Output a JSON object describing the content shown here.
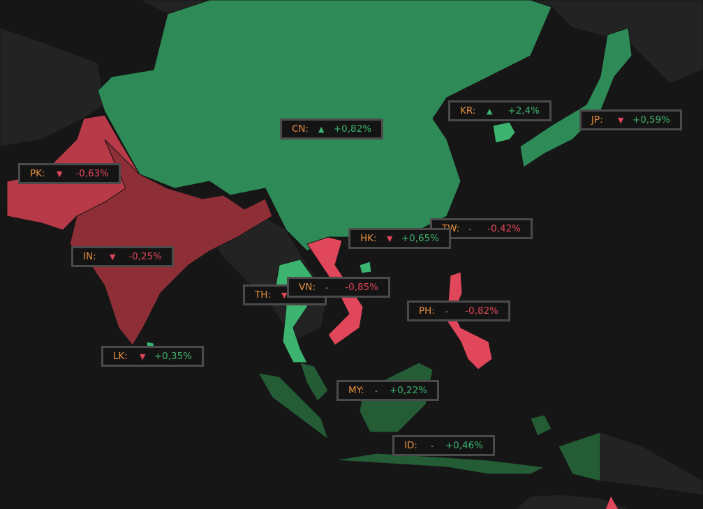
{
  "colors": {
    "background": "#161616",
    "land_no_data": "#232323",
    "positive": "#2e8b57",
    "positive_strong": "#3cb36e",
    "positive_weak": "#245c36",
    "negative": "#b83a48",
    "negative_dark": "#8e2f38",
    "negative_strong": "#e0475a",
    "label_code": "#e8913a"
  },
  "markers": [
    {
      "code": "CN:",
      "trend": "up",
      "arrow": "▲",
      "value": "+0,82%"
    },
    {
      "code": "KR:",
      "trend": "up",
      "arrow": "▲",
      "value": "+2,4%"
    },
    {
      "code": "JP:",
      "trend": "down",
      "arrow": "▼",
      "value": "+0,59%"
    },
    {
      "code": "PK:",
      "trend": "down",
      "arrow": "▼",
      "value": "-0,63%"
    },
    {
      "code": "TW:",
      "trend": "flat",
      "arrow": "-",
      "value": "-0,42%"
    },
    {
      "code": "HK:",
      "trend": "down",
      "arrow": "▼",
      "value": "+0,65%"
    },
    {
      "code": "IN:",
      "trend": "down",
      "arrow": "▼",
      "value": "-0,25%"
    },
    {
      "code": "TH:",
      "trend": "down",
      "arrow": "▼",
      "value": ""
    },
    {
      "code": "VN:",
      "trend": "flat",
      "arrow": "-",
      "value": "-0,85%"
    },
    {
      "code": "PH:",
      "trend": "flat",
      "arrow": "-",
      "value": "-0,82%"
    },
    {
      "code": "LK:",
      "trend": "down",
      "arrow": "▼",
      "value": "+0,35%"
    },
    {
      "code": "MY:",
      "trend": "flat",
      "arrow": "-",
      "value": "+0,22%"
    },
    {
      "code": "ID:",
      "trend": "flat",
      "arrow": "-",
      "value": "+0,46%"
    }
  ]
}
